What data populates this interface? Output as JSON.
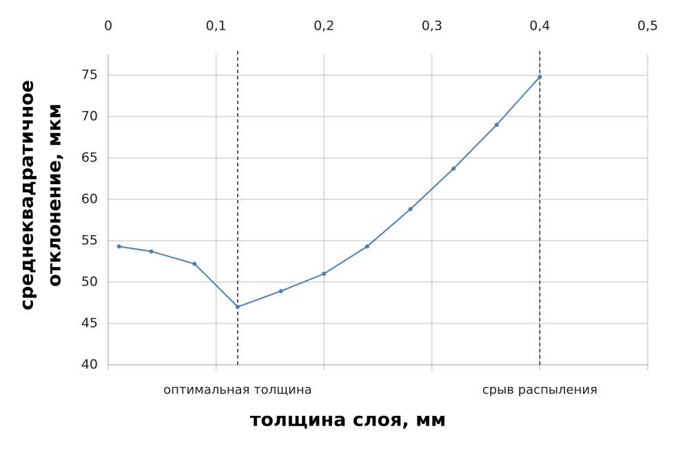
{
  "chart_data": {
    "type": "line",
    "x_label": "толщина слоя, мм",
    "y_label": [
      "среднеквадратичное",
      "отклонение, мкм"
    ],
    "x": [
      0.01,
      0.04,
      0.08,
      0.12,
      0.16,
      0.2,
      0.24,
      0.28,
      0.32,
      0.36,
      0.4
    ],
    "series": [
      {
        "name": null,
        "color": "#4a7ebb",
        "values": [
          54.3,
          53.7,
          52.2,
          47.0,
          48.9,
          51.0,
          54.3,
          58.8,
          63.7,
          69.0,
          74.8
        ]
      }
    ],
    "xlim": [
      0,
      0.5
    ],
    "xticks": [
      0,
      {
        "value": 0.1,
        "label": "0,1"
      },
      {
        "value": 0.2,
        "label": "0,2"
      },
      {
        "value": 0.3,
        "label": "0,3"
      },
      {
        "value": 0.4,
        "label": "0,4"
      },
      {
        "value": 0.5,
        "label": "0,5"
      }
    ],
    "ylim": [
      40,
      77.5
    ],
    "yticks": [
      40,
      45,
      50,
      55,
      60,
      65,
      70,
      75
    ],
    "grid": true,
    "annotations": [
      {
        "x": 0.12,
        "text": "оптимальная толщина"
      },
      {
        "x": 0.4,
        "text": "срыв распыления"
      }
    ]
  }
}
